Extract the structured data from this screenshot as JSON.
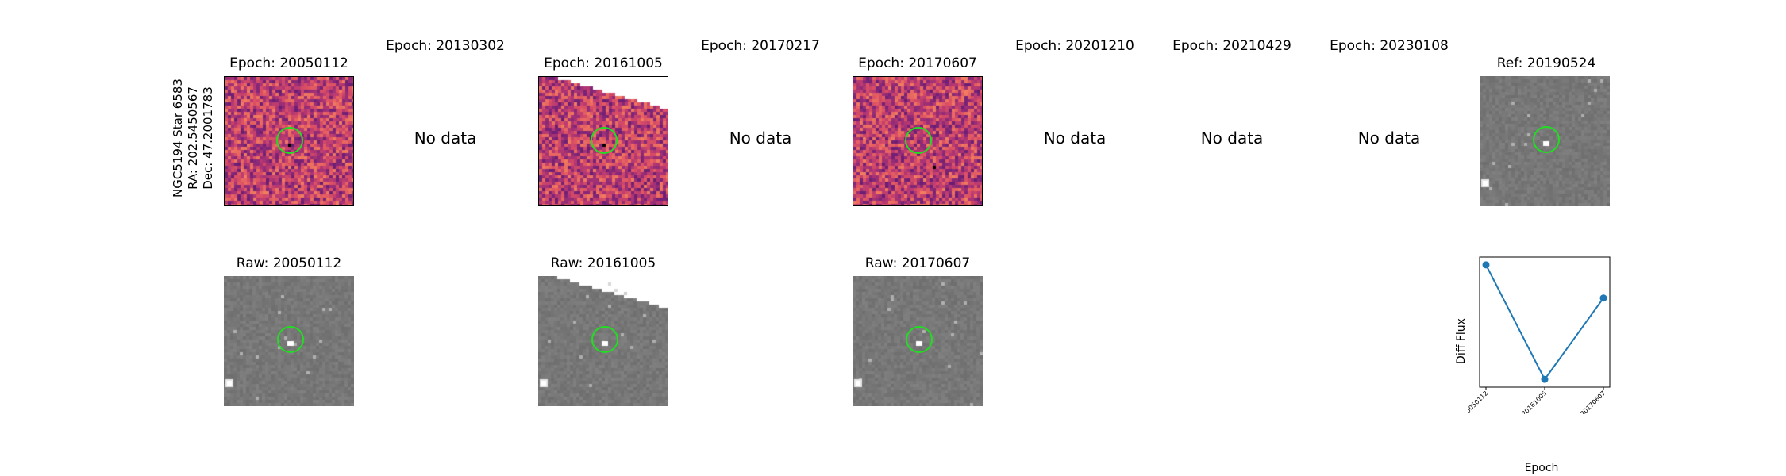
{
  "star": {
    "name": "NGC5194 Star 6583",
    "ra": "RA: 202.5450567",
    "dec": "Dec: 47.2001783"
  },
  "epochs": [
    {
      "label": "Epoch: 20050112",
      "has_data": true
    },
    {
      "label": "Epoch: 20130302",
      "has_data": false,
      "nodata": "No data"
    },
    {
      "label": "Epoch: 20161005",
      "has_data": true
    },
    {
      "label": "Epoch: 20170217",
      "has_data": false,
      "nodata": "No data"
    },
    {
      "label": "Epoch: 20170607",
      "has_data": true
    },
    {
      "label": "Epoch: 20201210",
      "has_data": false,
      "nodata": "No data"
    },
    {
      "label": "Epoch: 20210429",
      "has_data": false,
      "nodata": "No data"
    },
    {
      "label": "Epoch: 20230108",
      "has_data": false,
      "nodata": "No data"
    }
  ],
  "reference": {
    "label": "Ref: 20190524"
  },
  "raw": [
    {
      "label": "Raw: 20050112"
    },
    {
      "label": "Raw: 20161005"
    },
    {
      "label": "Raw: 20170607"
    }
  ],
  "colors": {
    "aperture": "#22dd22",
    "line": "#1f77b4"
  },
  "chart_data": {
    "type": "line",
    "x": [
      "20050112",
      "20161005",
      "20170607"
    ],
    "values": [
      1.0,
      0.0,
      0.71
    ],
    "xlabel": "Epoch",
    "ylabel": "Diff Flux",
    "yticks_shown": false
  }
}
